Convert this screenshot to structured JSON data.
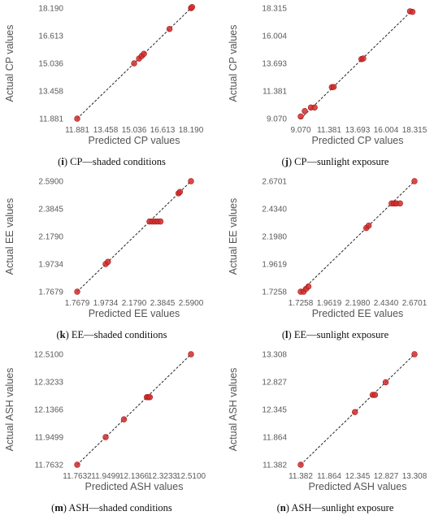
{
  "chart_data": [
    {
      "type": "scatter",
      "caption_tag": "i",
      "caption_text": "CP—shaded conditions",
      "xlabel": "Predicted CP values",
      "ylabel": "Actual CP values",
      "ticks": [
        "11.881",
        "13.458",
        "15.036",
        "16.613",
        "18.190"
      ],
      "lim": [
        11.881,
        18.19
      ],
      "x": [
        11.881,
        15.036,
        15.31,
        15.46,
        15.58,
        17.0,
        18.19,
        18.25
      ],
      "y": [
        11.881,
        15.036,
        15.31,
        15.46,
        15.58,
        17.0,
        18.19,
        18.25
      ]
    },
    {
      "type": "scatter",
      "caption_tag": "j",
      "caption_text": "CP—sunlight exposure",
      "xlabel": "Predicted CP values",
      "ylabel": "Actual CP values",
      "ticks": [
        "9.070",
        "11.381",
        "13.693",
        "16.004",
        "18.315"
      ],
      "lim": [
        9.07,
        18.315
      ],
      "x": [
        9.07,
        9.4,
        9.9,
        10.2,
        11.6,
        11.75,
        14.0,
        14.15,
        17.95,
        18.15
      ],
      "y": [
        9.25,
        9.7,
        10.0,
        10.0,
        11.7,
        11.72,
        14.05,
        14.1,
        18.05,
        18.0
      ]
    },
    {
      "type": "scatter",
      "caption_tag": "k",
      "caption_text": "EE—shaded conditions",
      "xlabel": "Predicted EE values",
      "ylabel": "Actual EE values",
      "ticks": [
        "1.7679",
        "1.9734",
        "2.1790",
        "2.3845",
        "2.5900"
      ],
      "lim": [
        1.7679,
        2.59
      ],
      "x": [
        1.7679,
        1.9734,
        1.99,
        2.29,
        2.31,
        2.33,
        2.35,
        2.37,
        2.5,
        2.51,
        2.59
      ],
      "y": [
        1.7679,
        1.9734,
        1.99,
        2.29,
        2.29,
        2.29,
        2.29,
        2.29,
        2.5,
        2.51,
        2.59
      ]
    },
    {
      "type": "scatter",
      "caption_tag": "l",
      "caption_text": "EE—sunlight exposure",
      "xlabel": "Predicted EE values",
      "ylabel": "Actual EE values",
      "ticks": [
        "1.7258",
        "1.9619",
        "2.1980",
        "2.4340",
        "2.6701"
      ],
      "lim": [
        1.7258,
        2.6701
      ],
      "x": [
        1.7258,
        1.75,
        1.77,
        1.79,
        2.27,
        2.29,
        2.48,
        2.5,
        2.52,
        2.55,
        2.6701
      ],
      "y": [
        1.7258,
        1.7258,
        1.75,
        1.77,
        2.27,
        2.29,
        2.48,
        2.48,
        2.48,
        2.48,
        2.6701
      ]
    },
    {
      "type": "scatter",
      "caption_tag": "m",
      "caption_text": "ASH—shaded conditions",
      "xlabel": "Predicted ASH values",
      "ylabel": "Actual ASH values",
      "ticks": [
        "11.7632",
        "11.9499",
        "12.1366",
        "12.3233",
        "12.5100"
      ],
      "lim": [
        11.7632,
        12.51
      ],
      "x": [
        11.7632,
        11.9499,
        12.07,
        12.22,
        12.23,
        12.24,
        12.51
      ],
      "y": [
        11.7632,
        11.9499,
        12.07,
        12.22,
        12.22,
        12.22,
        12.51
      ]
    },
    {
      "type": "scatter",
      "caption_tag": "n",
      "caption_text": "ASH—sunlight exposure",
      "xlabel": "Predicted ASH values",
      "ylabel": "Actual ASH values",
      "ticks": [
        "11.382",
        "11.864",
        "12.345",
        "12.827",
        "13.308"
      ],
      "lim": [
        11.382,
        13.308
      ],
      "x": [
        11.382,
        12.3,
        12.6,
        12.64,
        12.82,
        13.308
      ],
      "y": [
        11.382,
        12.3,
        12.6,
        12.6,
        12.82,
        13.308
      ]
    }
  ],
  "style": {
    "point_fill": "#d42a2a",
    "point_stroke": "#a01818",
    "fit_line": "#222222",
    "axis_color": "#888888"
  }
}
